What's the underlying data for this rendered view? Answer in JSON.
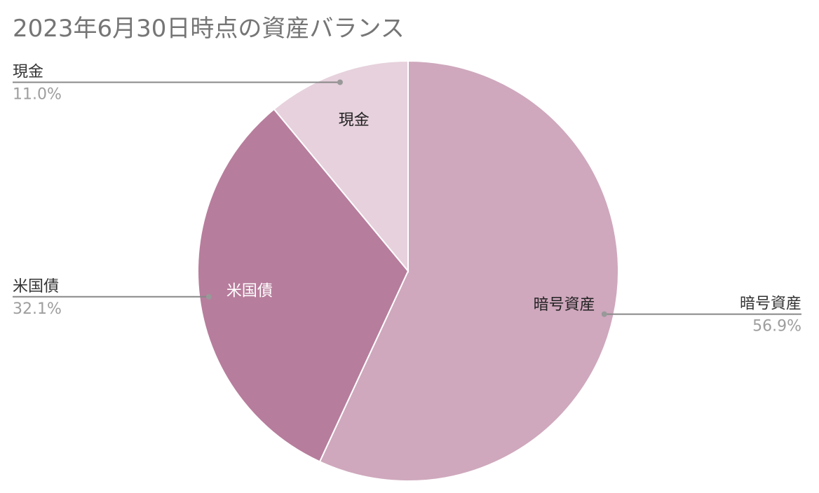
{
  "chart_data": {
    "type": "pie",
    "title": "2023年6月30日時点の資産バランス",
    "categories": [
      "暗号資産",
      "米国債",
      "現金"
    ],
    "values": [
      56.9,
      32.1,
      11.0
    ],
    "value_labels": [
      "56.9%",
      "32.1%",
      "11.0%"
    ],
    "colors": [
      "#cfa8bd",
      "#b77d9c",
      "#e6d1dc"
    ]
  }
}
